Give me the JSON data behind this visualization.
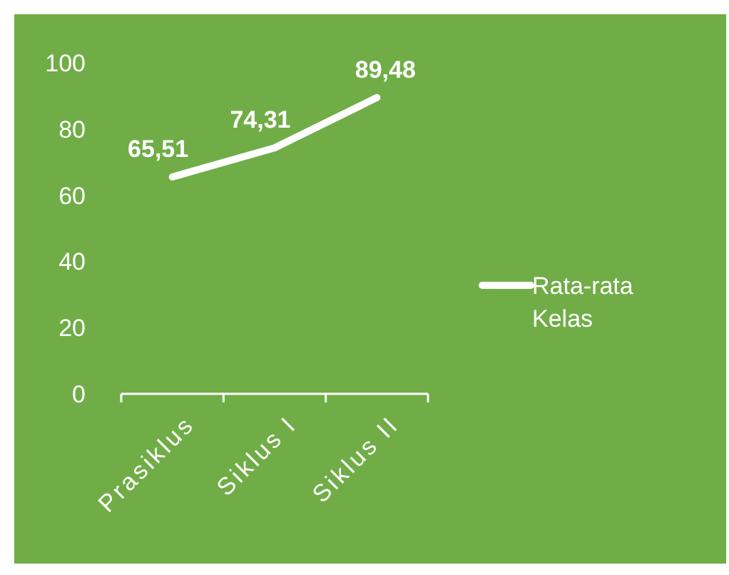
{
  "chart_data": {
    "type": "line",
    "categories": [
      "Prasiklus",
      "Siklus I",
      "Siklus II"
    ],
    "series": [
      {
        "name": "Rata-rata Kelas",
        "color": "#ffffff",
        "values": [
          65.51,
          74.31,
          89.48
        ]
      }
    ],
    "value_labels": [
      "65,51",
      "74,31",
      "89,48"
    ],
    "ylim": [
      0,
      100
    ],
    "yticks": [
      0,
      20,
      40,
      60,
      80,
      100
    ],
    "grid": false,
    "legend": "right",
    "marker": "none",
    "line_style": "solid"
  }
}
